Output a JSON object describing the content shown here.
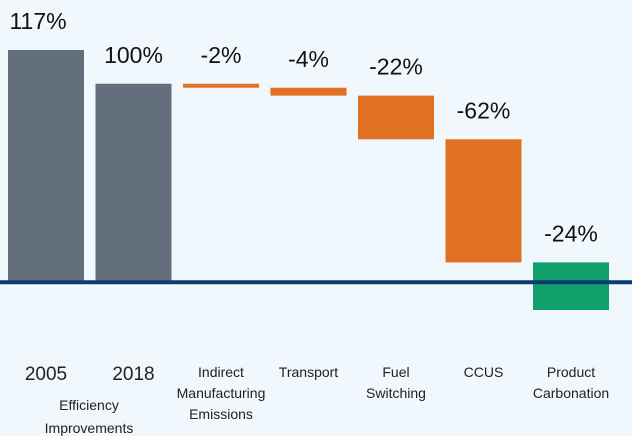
{
  "chart_data": {
    "type": "waterfall",
    "categories": [
      "2005",
      "2018",
      "Indirect Manufacturing Emissions",
      "Transport",
      "Fuel Switching",
      "CCUS",
      "Product Carbonation"
    ],
    "values": [
      117,
      100,
      -2,
      -4,
      -22,
      -62,
      -24
    ],
    "value_labels": [
      "117%",
      "100%",
      "-2%",
      "-4%",
      "-22%",
      "-62%",
      "-24%"
    ],
    "measures": [
      "absolute",
      "absolute",
      "relative",
      "relative",
      "relative",
      "relative",
      "relative"
    ],
    "colors": [
      "#646f7e",
      "#646f7e",
      "#e07022",
      "#e07022",
      "#e07022",
      "#e07022",
      "#10a06c"
    ],
    "annotations": [
      "Efficiency Improvements"
    ]
  }
}
